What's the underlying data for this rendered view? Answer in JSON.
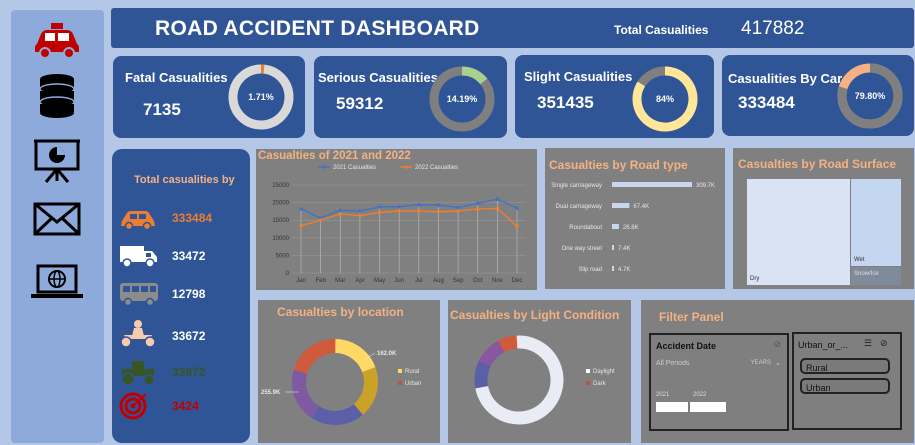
{
  "header": {
    "title": "ROAD ACCIDENT DASHBOARD",
    "total_label": "Total Casualities",
    "total_value": "417882"
  },
  "sidebar": {
    "icons": [
      "car-icon",
      "database-icon",
      "presentation-icon",
      "mail-icon",
      "laptop-globe-icon"
    ]
  },
  "kpis": [
    {
      "title": "Fatal Casualities",
      "value": "7135",
      "pct": "1.71%",
      "fraction": 0.0171,
      "color": "#ed7d31",
      "track": "#d9d9d9"
    },
    {
      "title": "Serious Casualities",
      "value": "59312",
      "pct": "14.19%",
      "fraction": 0.1419,
      "color": "#a9d18e",
      "track": "#7f7f7f"
    },
    {
      "title": "Slight Casualities",
      "value": "351435",
      "pct": "84%",
      "fraction": 0.84,
      "color": "#ffe699",
      "track": "#7f7f7f"
    },
    {
      "title": "Casualities By Car",
      "value": "333484",
      "pct": "79.80%",
      "fraction": 0.798,
      "color": "#7f7f7f",
      "track": "#f4b183"
    }
  ],
  "vehicles": {
    "title": "Total casualities by",
    "items": [
      {
        "icon": "car-icon",
        "value": "333484",
        "color": "#ed7d31"
      },
      {
        "icon": "van-icon",
        "value": "33472",
        "color": "#ffffff"
      },
      {
        "icon": "bus-icon",
        "value": "12798",
        "color": "#ffffff"
      },
      {
        "icon": "quad-bike-icon",
        "value": "33672",
        "color": "#ffffff"
      },
      {
        "icon": "tractor-icon",
        "value": "33672",
        "color": "#375623"
      },
      {
        "icon": "target-icon",
        "value": "3424",
        "color": "#c00000"
      }
    ]
  },
  "chart_data": [
    {
      "type": "line",
      "title": "Casualties of 2021 and 2022",
      "categories": [
        "Jan",
        "Feb",
        "Mar",
        "Apr",
        "May",
        "Jun",
        "Jul",
        "Aug",
        "Sep",
        "Oct",
        "Nov",
        "Dec"
      ],
      "series": [
        {
          "name": "2021 Casualties",
          "values": [
            18200,
            15600,
            17800,
            17600,
            18800,
            18800,
            19400,
            19300,
            18600,
            19800,
            21000,
            18400
          ],
          "color": "#4472c4"
        },
        {
          "name": "2022 Casualties",
          "values": [
            13400,
            15000,
            16800,
            16300,
            17200,
            17600,
            17600,
            17400,
            17600,
            18200,
            18300,
            13300
          ],
          "color": "#ed7d31"
        }
      ],
      "ylim": [
        0,
        25000
      ],
      "yticks": [
        "0",
        "5000",
        "10000",
        "15000",
        "20000",
        "25000"
      ],
      "grid": true,
      "legend": "top"
    },
    {
      "type": "bar",
      "title": "Casualties by Road type",
      "categories": [
        "Single carriageway",
        "Dual carriageway",
        "Roundabout",
        "One way street",
        "Slip road"
      ],
      "values": [
        309.7,
        67.4,
        26.8,
        7.4,
        4.7
      ],
      "labels": [
        "309.7K",
        "67.4K",
        "26.8K",
        "7.4K",
        "4.7K"
      ],
      "unit": "K"
    },
    {
      "type": "heatmap",
      "title": "Casualties by Road Surface",
      "categories": [
        "Dry",
        "Wet",
        "Snow/Ice"
      ]
    },
    {
      "type": "pie",
      "title": "Casualties by location",
      "categories": [
        "Rural",
        "Urban"
      ],
      "values": [
        162.0,
        255.9
      ],
      "labels": [
        "162.0K",
        "255.9K"
      ],
      "legend": "right"
    },
    {
      "type": "pie",
      "title": "Casualties by Light Condition",
      "categories": [
        "Daylight",
        "Dark"
      ],
      "values": [
        305,
        113
      ],
      "legend": "right"
    }
  ],
  "filter": {
    "title": "Filter Panel",
    "date": {
      "title": "Accident Date",
      "periods": "All Periods",
      "unit": "YEARS",
      "years": [
        "2021",
        "2022"
      ]
    },
    "area": {
      "title": "Urban_or_...",
      "options": [
        "Rural",
        "Urban"
      ]
    }
  }
}
